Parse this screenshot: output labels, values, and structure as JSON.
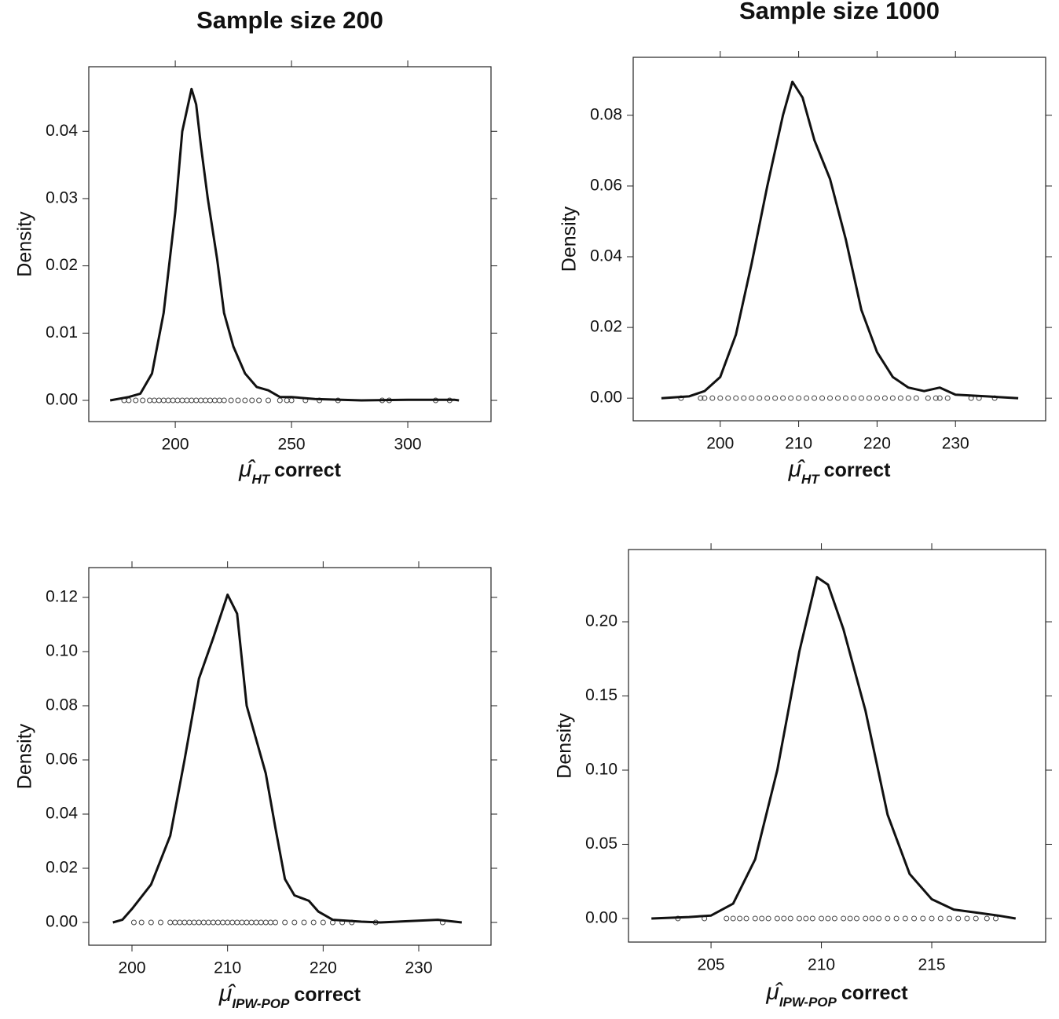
{
  "chart_data": [
    {
      "type": "line",
      "title": "Sample size 200",
      "ylabel": "Density",
      "xlabel_symbol": "μ̂",
      "xlabel_subscript": "HT",
      "xlabel_text": "correct",
      "color": "#111111",
      "x": [
        172,
        180,
        185,
        190,
        195,
        200,
        203,
        207,
        209,
        211,
        214,
        218,
        221,
        225,
        230,
        235,
        240,
        245,
        250,
        260,
        280,
        300,
        320,
        322
      ],
      "values": [
        0,
        0.0005,
        0.001,
        0.004,
        0.013,
        0.028,
        0.04,
        0.0463,
        0.044,
        0.038,
        0.03,
        0.021,
        0.013,
        0.008,
        0.004,
        0.002,
        0.0015,
        0.0005,
        0.0005,
        0.0002,
        0,
        0.0001,
        0.0001,
        0
      ],
      "rug": [
        178,
        180,
        183,
        186,
        189,
        191,
        193,
        195,
        197,
        199,
        201,
        203,
        205,
        207,
        209,
        211,
        213,
        215,
        217,
        219,
        221,
        224,
        227,
        230,
        233,
        236,
        240,
        245,
        248,
        250,
        256,
        262,
        270,
        289,
        292,
        312,
        318
      ],
      "xlim": [
        162.8,
        335.8
      ],
      "ylim": [
        -0.00315,
        0.0496
      ],
      "xticks": [
        200,
        250,
        300
      ],
      "yticks": [
        {
          "value": 0,
          "label": "0.00"
        },
        {
          "value": 0.01,
          "label": "0.01"
        },
        {
          "value": 0.02,
          "label": "0.02"
        },
        {
          "value": 0.03,
          "label": "0.03"
        },
        {
          "value": 0.04,
          "label": "0.04"
        }
      ]
    },
    {
      "type": "line",
      "title": "Sample size 1000",
      "ylabel": "Density",
      "xlabel_symbol": "μ̂",
      "xlabel_subscript": "HT",
      "xlabel_text": "correct",
      "color": "#111111",
      "x": [
        192.5,
        196,
        198,
        200,
        202,
        204,
        206,
        208,
        209.2,
        210.5,
        212,
        214,
        216,
        218,
        220,
        222,
        224,
        226,
        228,
        230,
        234,
        238
      ],
      "values": [
        0,
        0.0005,
        0.002,
        0.006,
        0.018,
        0.038,
        0.06,
        0.08,
        0.0895,
        0.085,
        0.073,
        0.062,
        0.045,
        0.025,
        0.013,
        0.006,
        0.003,
        0.002,
        0.003,
        0.001,
        0.0005,
        0
      ],
      "rug": [
        195,
        197.5,
        198,
        199,
        200,
        201,
        202,
        203,
        204,
        205,
        206,
        207,
        208,
        209,
        210,
        211,
        212,
        213,
        214,
        215,
        216,
        217,
        218,
        219,
        220,
        221,
        222,
        223,
        224,
        225,
        226.5,
        227.5,
        228,
        229,
        232,
        233,
        235
      ],
      "xlim": [
        188.9,
        241.5
      ],
      "ylim": [
        -0.0064,
        0.0964
      ],
      "xticks": [
        200,
        210,
        220,
        230
      ],
      "yticks": [
        {
          "value": 0,
          "label": "0.00"
        },
        {
          "value": 0.02,
          "label": "0.02"
        },
        {
          "value": 0.04,
          "label": "0.04"
        },
        {
          "value": 0.06,
          "label": "0.06"
        },
        {
          "value": 0.08,
          "label": "0.08"
        }
      ]
    },
    {
      "type": "line",
      "ylabel": "Density",
      "xlabel_symbol": "μ̂",
      "xlabel_subscript": "IPW-POP",
      "xlabel_text": "correct",
      "color": "#111111",
      "x": [
        198,
        199,
        200,
        202,
        204,
        205.5,
        207,
        208.5,
        210,
        211,
        212,
        214,
        215,
        216,
        217,
        218.5,
        219.5,
        221,
        224,
        226,
        232,
        234.5
      ],
      "values": [
        0,
        0.001,
        0.005,
        0.014,
        0.032,
        0.06,
        0.09,
        0.105,
        0.121,
        0.114,
        0.08,
        0.055,
        0.035,
        0.016,
        0.01,
        0.008,
        0.004,
        0.001,
        0.0003,
        0,
        0.001,
        0
      ],
      "rug": [
        200.2,
        201,
        202,
        203,
        204,
        204.5,
        205,
        205.5,
        206,
        206.5,
        207,
        207.5,
        208,
        208.5,
        209,
        209.5,
        210,
        210.5,
        211,
        211.5,
        212,
        212.5,
        213,
        213.5,
        214,
        214.5,
        215,
        216,
        217,
        218,
        219,
        220,
        221,
        222,
        223,
        225.5,
        232.5
      ],
      "xlim": [
        195.48,
        237.56
      ],
      "ylim": [
        -0.0084,
        0.131
      ],
      "xticks": [
        200,
        210,
        220,
        230
      ],
      "yticks": [
        {
          "value": 0,
          "label": "0.00"
        },
        {
          "value": 0.02,
          "label": "0.02"
        },
        {
          "value": 0.04,
          "label": "0.04"
        },
        {
          "value": 0.06,
          "label": "0.06"
        },
        {
          "value": 0.08,
          "label": "0.08"
        },
        {
          "value": 0.1,
          "label": "0.10"
        },
        {
          "value": 0.12,
          "label": "0.12"
        }
      ]
    },
    {
      "type": "line",
      "ylabel": "Density",
      "xlabel_symbol": "μ̂",
      "xlabel_subscript": "IPW-POP",
      "xlabel_text": "correct",
      "color": "#111111",
      "x": [
        202.3,
        204,
        205,
        206,
        207,
        208,
        209,
        209.8,
        210.3,
        211,
        212,
        213,
        214,
        215,
        216,
        217,
        218,
        218.8
      ],
      "values": [
        0,
        0.001,
        0.002,
        0.01,
        0.04,
        0.1,
        0.18,
        0.23,
        0.225,
        0.195,
        0.14,
        0.07,
        0.03,
        0.013,
        0.006,
        0.004,
        0.002,
        0
      ],
      "rug": [
        203.5,
        204.7,
        205.7,
        206,
        206.3,
        206.6,
        207,
        207.3,
        207.6,
        208,
        208.3,
        208.6,
        209,
        209.3,
        209.6,
        210,
        210.3,
        210.6,
        211,
        211.3,
        211.6,
        212,
        212.3,
        212.6,
        213,
        213.4,
        213.8,
        214.2,
        214.6,
        215,
        215.4,
        215.8,
        216.2,
        216.6,
        217,
        217.5,
        217.9
      ],
      "xlim": [
        201.26,
        220.16
      ],
      "ylim": [
        -0.0159,
        0.2487
      ],
      "xticks": [
        205,
        210,
        215
      ],
      "yticks": [
        {
          "value": 0,
          "label": "0.00"
        },
        {
          "value": 0.05,
          "label": "0.05"
        },
        {
          "value": 0.1,
          "label": "0.10"
        },
        {
          "value": 0.15,
          "label": "0.15"
        },
        {
          "value": 0.2,
          "label": "0.20"
        }
      ]
    }
  ]
}
